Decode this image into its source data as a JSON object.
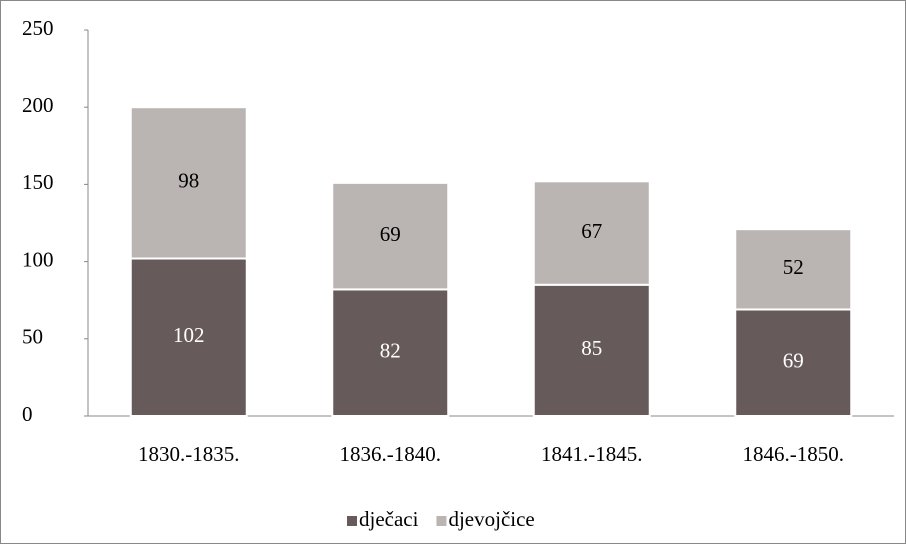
{
  "chart_data": {
    "type": "stacked_bar",
    "categories": [
      "1830.-1835.",
      "1836.-1840.",
      "1841.-1845.",
      "1846.-1850."
    ],
    "series": [
      {
        "name": "dječaci",
        "color": "#665b5a",
        "values": [
          102,
          82,
          85,
          69
        ]
      },
      {
        "name": "djevojčice",
        "color": "#bab5b3",
        "values": [
          98,
          69,
          67,
          52
        ]
      }
    ],
    "ylim": [
      0,
      250
    ],
    "yticks": [
      0,
      50,
      100,
      150,
      200,
      250
    ],
    "grid": false,
    "legend": "bottom"
  }
}
